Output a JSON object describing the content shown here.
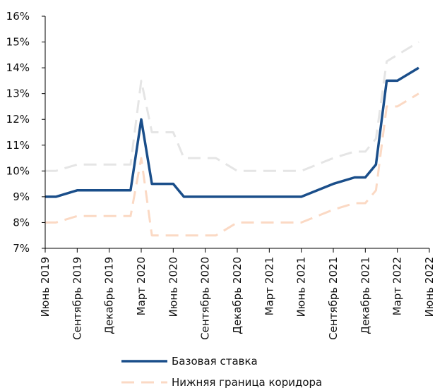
{
  "chart_data": {
    "type": "line",
    "title": "",
    "xlabel": "",
    "ylabel": "",
    "ylim": [
      7,
      16
    ],
    "yticks": [
      "7%",
      "8%",
      "9%",
      "10%",
      "11%",
      "12%",
      "13%",
      "14%",
      "15%",
      "16%"
    ],
    "xlim": [
      "2019-06",
      "2022-06"
    ],
    "xticks": [
      "Июнь 2019",
      "Сентябрь 2019",
      "Декабрь 2019",
      "Март 2020",
      "Июнь 2020",
      "Сентябрь 2020",
      "Декабрь 2020",
      "Март 2021",
      "Июнь 2021",
      "Сентябрь 2021",
      "Декабрь 2021",
      "Март 2022",
      "Июнь 2022"
    ],
    "grid": false,
    "legend_position": "bottom",
    "series": [
      {
        "name": "Базовая ставка",
        "color": "#1a4e8a",
        "style": "solid",
        "points": [
          [
            "2019-06",
            9.0
          ],
          [
            "2019-07",
            9.0
          ],
          [
            "2019-09",
            9.25
          ],
          [
            "2020-01",
            9.25
          ],
          [
            "2020-02",
            9.25
          ],
          [
            "2020-03",
            12.0
          ],
          [
            "2020-04",
            9.5
          ],
          [
            "2020-06",
            9.5
          ],
          [
            "2020-07",
            9.0
          ],
          [
            "2021-06",
            9.0
          ],
          [
            "2021-09",
            9.5
          ],
          [
            "2021-11",
            9.75
          ],
          [
            "2021-12",
            9.75
          ],
          [
            "2022-01",
            10.25
          ],
          [
            "2022-02",
            13.5
          ],
          [
            "2022-03",
            13.5
          ],
          [
            "2022-05",
            14.0
          ]
        ]
      },
      {
        "name": "Нижняя граница коридора",
        "color": "#fbd9c4",
        "style": "dashed",
        "points": [
          [
            "2019-06",
            8.0
          ],
          [
            "2019-07",
            8.0
          ],
          [
            "2019-09",
            8.25
          ],
          [
            "2020-01",
            8.25
          ],
          [
            "2020-02",
            8.25
          ],
          [
            "2020-03",
            10.5
          ],
          [
            "2020-04",
            7.5
          ],
          [
            "2020-10",
            7.5
          ],
          [
            "2020-12",
            8.0
          ],
          [
            "2021-06",
            8.0
          ],
          [
            "2021-09",
            8.5
          ],
          [
            "2021-11",
            8.75
          ],
          [
            "2021-12",
            8.75
          ],
          [
            "2022-01",
            9.25
          ],
          [
            "2022-02",
            12.5
          ],
          [
            "2022-03",
            12.5
          ],
          [
            "2022-05",
            13.0
          ]
        ]
      },
      {
        "name": "",
        "color": "#e5e5e5",
        "style": "dashed",
        "points": [
          [
            "2019-06",
            10.0
          ],
          [
            "2019-07",
            10.0
          ],
          [
            "2019-09",
            10.25
          ],
          [
            "2020-01",
            10.25
          ],
          [
            "2020-02",
            10.25
          ],
          [
            "2020-03",
            13.5
          ],
          [
            "2020-04",
            11.5
          ],
          [
            "2020-06",
            11.5
          ],
          [
            "2020-07",
            10.5
          ],
          [
            "2020-10",
            10.5
          ],
          [
            "2020-12",
            10.0
          ],
          [
            "2021-06",
            10.0
          ],
          [
            "2021-09",
            10.5
          ],
          [
            "2021-11",
            10.75
          ],
          [
            "2021-12",
            10.75
          ],
          [
            "2022-01",
            11.25
          ],
          [
            "2022-02",
            14.25
          ],
          [
            "2022-03",
            14.5
          ],
          [
            "2022-05",
            15.0
          ]
        ]
      }
    ]
  }
}
